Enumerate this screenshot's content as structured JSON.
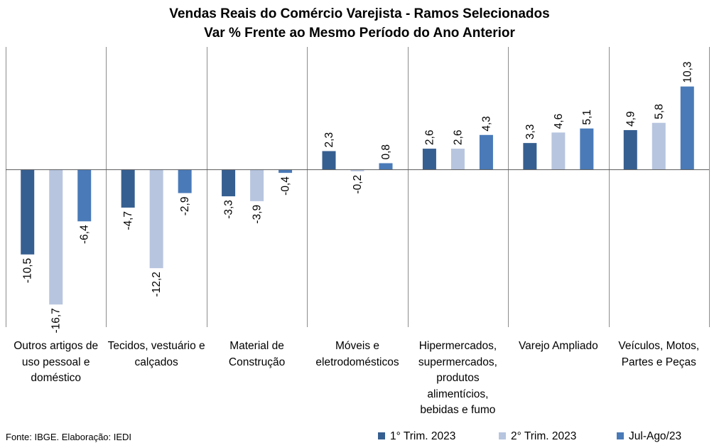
{
  "chart_data": {
    "type": "bar",
    "title": "Vendas Reais do Comércio Varejista - Ramos Selecionados",
    "subtitle": "Var % Frente ao Mesmo Período do Ano Anterior",
    "categories": [
      "Outros artigos de uso pessoal e doméstico",
      "Tecidos, vestuário e calçados",
      "Material de Construção",
      "Móveis e eletrodomésticos",
      "Hipermercados, supermercados, produtos alimentícios, bebidas e fumo",
      "Varejo Ampliado",
      "Veículos, Motos, Partes e Peças"
    ],
    "series": [
      {
        "name": "1° Trim. 2023",
        "color": "#365f91",
        "values": [
          -10.5,
          -4.7,
          -3.3,
          2.3,
          2.6,
          3.3,
          4.9
        ]
      },
      {
        "name": "2° Trim. 2023",
        "color": "#b7c5df",
        "values": [
          -16.7,
          -12.2,
          -3.9,
          -0.2,
          2.6,
          4.6,
          5.8
        ]
      },
      {
        "name": "Jul-Ago/23",
        "color": "#4a7ab8",
        "values": [
          -6.4,
          -2.9,
          -0.4,
          0.8,
          4.3,
          5.1,
          10.3
        ]
      }
    ],
    "data_labels": [
      [
        "-10,5",
        "-4,7",
        "-3,3",
        "2,3",
        "2,6",
        "3,3",
        "4,9"
      ],
      [
        "-16,7",
        "-12,2",
        "-3,9",
        "-0,2",
        "2,6",
        "4,6",
        "5,8"
      ],
      [
        "-6,4",
        "-2,9",
        "-0,4",
        "0,8",
        "4,3",
        "5,1",
        "10,3"
      ]
    ],
    "ylim": [
      -19.5,
      15.2
    ],
    "grid": false,
    "legend_position": "bottom-right",
    "xlabel": "",
    "ylabel": ""
  },
  "source_note": "Fonte: IBGE. Elaboração: IEDI"
}
